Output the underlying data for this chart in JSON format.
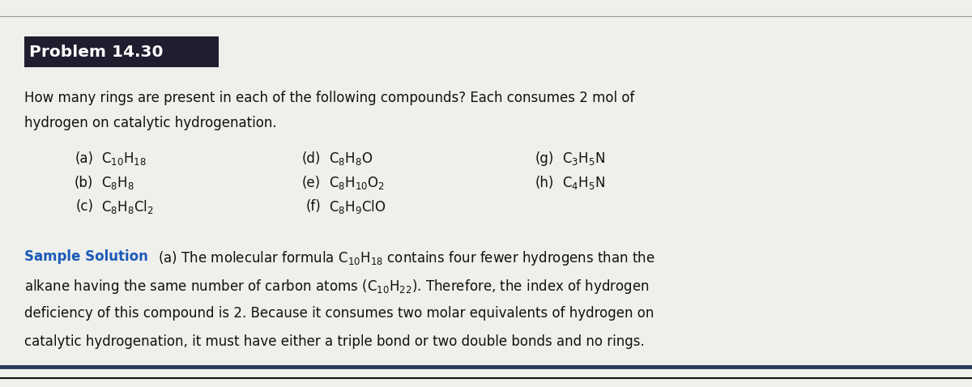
{
  "title": "Problem 14.30",
  "title_bg": "#1e1e2e",
  "title_color": "#ffffff",
  "bg_color": "#efefeb",
  "question_line1": "How many rings are present in each of the following compounds? Each consumes 2 mol of",
  "question_line2": "hydrogen on catalytic hydrogenation.",
  "col1": [
    {
      "label": "(a)",
      "formula": "C$_{10}$H$_{18}$"
    },
    {
      "label": "(b)",
      "formula": "C$_8$H$_8$"
    },
    {
      "label": "(c)",
      "formula": "C$_8$H$_8$Cl$_2$"
    }
  ],
  "col2": [
    {
      "label": "(d)",
      "formula": "C$_8$H$_8$O"
    },
    {
      "label": "(e)",
      "formula": "C$_8$H$_{10}$O$_2$"
    },
    {
      "label": "(f)",
      "formula": "C$_8$H$_9$ClO"
    }
  ],
  "col3": [
    {
      "label": "(g)",
      "formula": "C$_3$H$_5$N"
    },
    {
      "label": "(h)",
      "formula": "C$_4$H$_5$N"
    }
  ],
  "sample_bold": "Sample Solution",
  "sample_line1_rest": " (a) The molecular formula C$_{10}$H$_{18}$ contains four fewer hydrogens than the",
  "sample_line2": "alkane having the same number of carbon atoms (C$_{10}$H$_{22}$). Therefore, the index of hydrogen",
  "sample_line3": "deficiency of this compound is 2. Because it consumes two molar equivalents of hydrogen on",
  "sample_line4": "catalytic hydrogenation, it must have either a triple bond or two double bonds and no rings.",
  "sample_color": "#1a5ab8",
  "text_color": "#111111",
  "top_line_color": "#666666",
  "bottom_line1_color": "#2a3a5a",
  "bottom_line2_color": "#111111"
}
